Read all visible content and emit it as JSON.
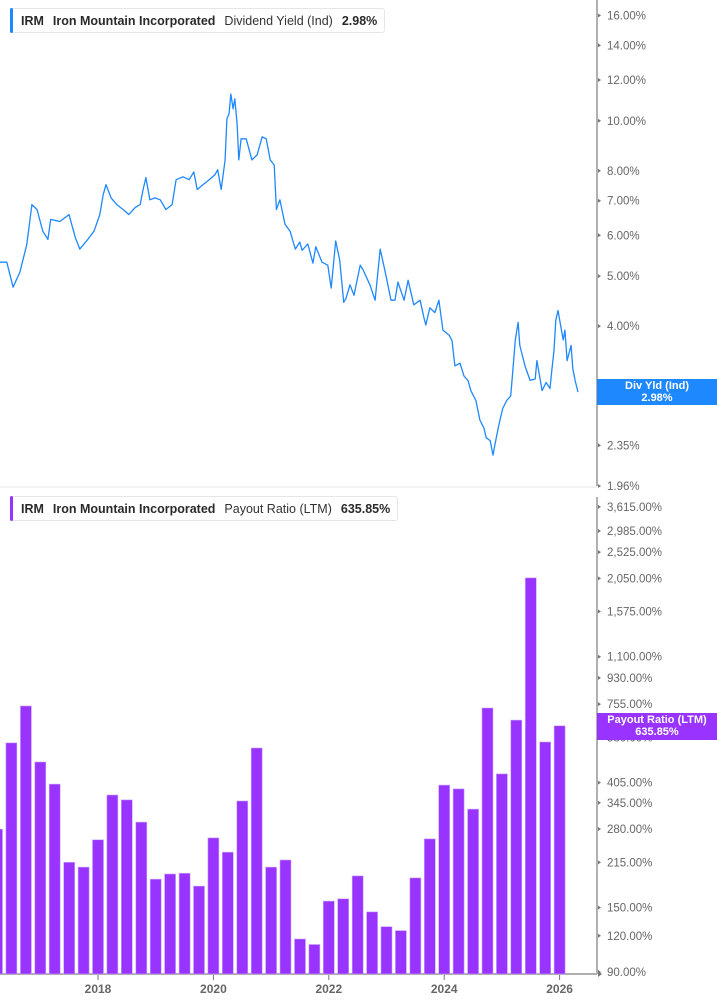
{
  "colors": {
    "yield": "#1e88ff",
    "payout": "#9933ff",
    "axis": "#b0b0b0",
    "tick_text": "#666666"
  },
  "top_legend": {
    "ticker": "IRM",
    "company": "Iron Mountain Incorporated",
    "metric": "Dividend Yield (Ind)",
    "value": "2.98%"
  },
  "bottom_legend": {
    "ticker": "IRM",
    "company": "Iron Mountain Incorporated",
    "metric": "Payout Ratio (LTM)",
    "value": "635.85%"
  },
  "top_badge": {
    "label": "Div Yld (Ind)",
    "value": "2.98%"
  },
  "bottom_badge": {
    "label": "Payout Ratio (LTM)",
    "value": "635.85%"
  },
  "chart_data": [
    {
      "type": "line",
      "title": "",
      "series_label": "Dividend Yield (Ind)",
      "y_scale": "log",
      "ylim": [
        1.96,
        17
      ],
      "y_ticks": [
        16,
        14,
        12,
        10,
        8,
        7,
        6,
        5,
        4,
        3,
        2.35,
        1.96
      ],
      "y_tick_labels": [
        "16.00%",
        "14.00%",
        "12.00%",
        "10.00%",
        "8.00%",
        "7.00%",
        "6.00%",
        "5.00%",
        "4.00%",
        "3.00%",
        "2.35%",
        "1.96%"
      ],
      "grid": false,
      "x": [
        2016.15,
        2016.27,
        2016.38,
        2016.5,
        2016.62,
        2016.71,
        2016.8,
        2016.9,
        2016.99,
        2017.04,
        2017.2,
        2017.36,
        2017.47,
        2017.55,
        2017.69,
        2017.8,
        2017.9,
        2017.96,
        2018.01,
        2018.1,
        2018.2,
        2018.31,
        2018.41,
        2018.52,
        2018.61,
        2018.66,
        2018.71,
        2018.78,
        2018.87,
        2018.96,
        2019.06,
        2019.17,
        2019.24,
        2019.36,
        2019.47,
        2019.55,
        2019.61,
        2019.71,
        2019.82,
        2019.92,
        2019.97,
        2020.03,
        2020.1,
        2020.13,
        2020.17,
        2020.2,
        2020.24,
        2020.27,
        2020.31,
        2020.34,
        2020.38,
        2020.47,
        2020.57,
        2020.66,
        2020.75,
        2020.82,
        2020.89,
        2020.96,
        2021.0,
        2021.06,
        2021.15,
        2021.24,
        2021.33,
        2021.41,
        2021.45,
        2021.55,
        2021.64,
        2021.69,
        2021.8,
        2021.9,
        2021.96,
        2022.04,
        2022.11,
        2022.18,
        2022.22,
        2022.29,
        2022.36,
        2022.47,
        2022.52,
        2022.64,
        2022.73,
        2022.82,
        2022.92,
        2023.01,
        2023.08,
        2023.13,
        2023.24,
        2023.31,
        2023.41,
        2023.52,
        2023.59,
        2023.62,
        2023.69,
        2023.78,
        2023.85,
        2023.92,
        2024.03,
        2024.08,
        2024.13,
        2024.22,
        2024.29,
        2024.36,
        2024.41,
        2024.5,
        2024.57,
        2024.64,
        2024.68,
        2024.75,
        2024.8,
        2024.83,
        2024.9,
        2024.97,
        2025.04,
        2025.11,
        2025.15,
        2025.19,
        2025.24,
        2025.27,
        2025.36,
        2025.45,
        2025.54,
        2025.57,
        2025.66,
        2025.73,
        2025.8,
        2025.83,
        2025.87,
        2025.9,
        2025.94,
        2025.97,
        2026.03,
        2026.06,
        2026.1,
        2026.17,
        2026.2,
        2026.24,
        2026.29
      ],
      "values": [
        5.32,
        5.32,
        4.76,
        5.09,
        5.76,
        6.88,
        6.73,
        6.11,
        5.89,
        6.44,
        6.38,
        6.58,
        5.95,
        5.64,
        5.89,
        6.11,
        6.58,
        7.19,
        7.52,
        7.09,
        6.88,
        6.73,
        6.58,
        6.79,
        6.88,
        7.36,
        7.76,
        7.03,
        7.09,
        7.03,
        6.73,
        6.88,
        7.69,
        7.79,
        7.69,
        7.96,
        7.36,
        7.52,
        7.69,
        7.86,
        8.04,
        7.36,
        8.4,
        10.09,
        10.32,
        11.27,
        10.55,
        11.03,
        9.87,
        8.4,
        9.23,
        9.23,
        8.4,
        8.59,
        9.31,
        9.23,
        8.4,
        8.21,
        6.73,
        7.03,
        6.3,
        6.11,
        5.64,
        5.82,
        5.61,
        5.77,
        5.3,
        5.7,
        5.32,
        5.25,
        4.74,
        5.85,
        5.37,
        4.45,
        4.53,
        4.81,
        4.59,
        5.25,
        5.14,
        4.81,
        4.49,
        5.64,
        5.02,
        4.49,
        4.49,
        4.87,
        4.49,
        4.91,
        4.4,
        4.49,
        4.14,
        4.02,
        4.34,
        4.25,
        4.49,
        3.93,
        3.84,
        3.75,
        3.35,
        3.39,
        3.2,
        3.14,
        3.0,
        2.87,
        2.63,
        2.54,
        2.43,
        2.4,
        2.25,
        2.35,
        2.57,
        2.77,
        2.87,
        2.93,
        3.31,
        3.76,
        4.07,
        3.67,
        3.35,
        3.14,
        3.16,
        3.43,
        3.0,
        3.11,
        3.03,
        3.28,
        3.59,
        4.11,
        4.29,
        4.11,
        3.76,
        3.93,
        3.43,
        3.67,
        3.31,
        3.14,
        2.98
      ]
    },
    {
      "type": "bar",
      "title": "",
      "series_label": "Payout Ratio (LTM)",
      "y_scale": "log",
      "ylim": [
        90,
        4000
      ],
      "y_ticks": [
        3615,
        2985,
        2525,
        2050,
        1575,
        1100,
        930,
        755,
        580,
        405,
        345,
        280,
        215,
        150,
        120,
        90
      ],
      "y_tick_labels": [
        "3,615.00%",
        "2,985.00%",
        "2,525.00%",
        "2,050.00%",
        "1,575.00%",
        "1,100.00%",
        "930.00%",
        "755.00%",
        "580.00%",
        "405.00%",
        "345.00%",
        "280.00%",
        "215.00%",
        "150.00%",
        "120.00%",
        "90.00%"
      ],
      "x_ticks": [
        2018,
        2020,
        2022,
        2024,
        2026
      ],
      "x_tick_labels": [
        "2018",
        "2020",
        "2022",
        "2024",
        "2026"
      ],
      "grid": false,
      "x": [
        2016.25,
        2016.5,
        2016.75,
        2017.0,
        2017.25,
        2017.5,
        2017.75,
        2018.0,
        2018.25,
        2018.5,
        2018.75,
        2019.0,
        2019.25,
        2019.5,
        2019.75,
        2020.0,
        2020.25,
        2020.5,
        2020.75,
        2021.0,
        2021.25,
        2021.5,
        2021.75,
        2022.0,
        2022.25,
        2022.5,
        2022.75,
        2023.0,
        2023.25,
        2023.5,
        2023.75,
        2024.0,
        2024.25,
        2024.5,
        2024.75,
        2025.0,
        2025.25,
        2025.5,
        2025.75,
        2026.0
      ],
      "values": [
        280,
        555,
        744,
        477,
        400,
        215,
        207,
        257,
        367,
        353,
        296,
        188,
        196,
        197,
        178,
        261,
        233,
        350,
        533,
        207,
        219,
        117,
        112,
        158,
        161,
        193,
        145,
        129,
        125,
        190,
        259,
        397,
        385,
        328,
        732,
        434,
        665,
        2057,
        559,
        635.85
      ]
    }
  ]
}
